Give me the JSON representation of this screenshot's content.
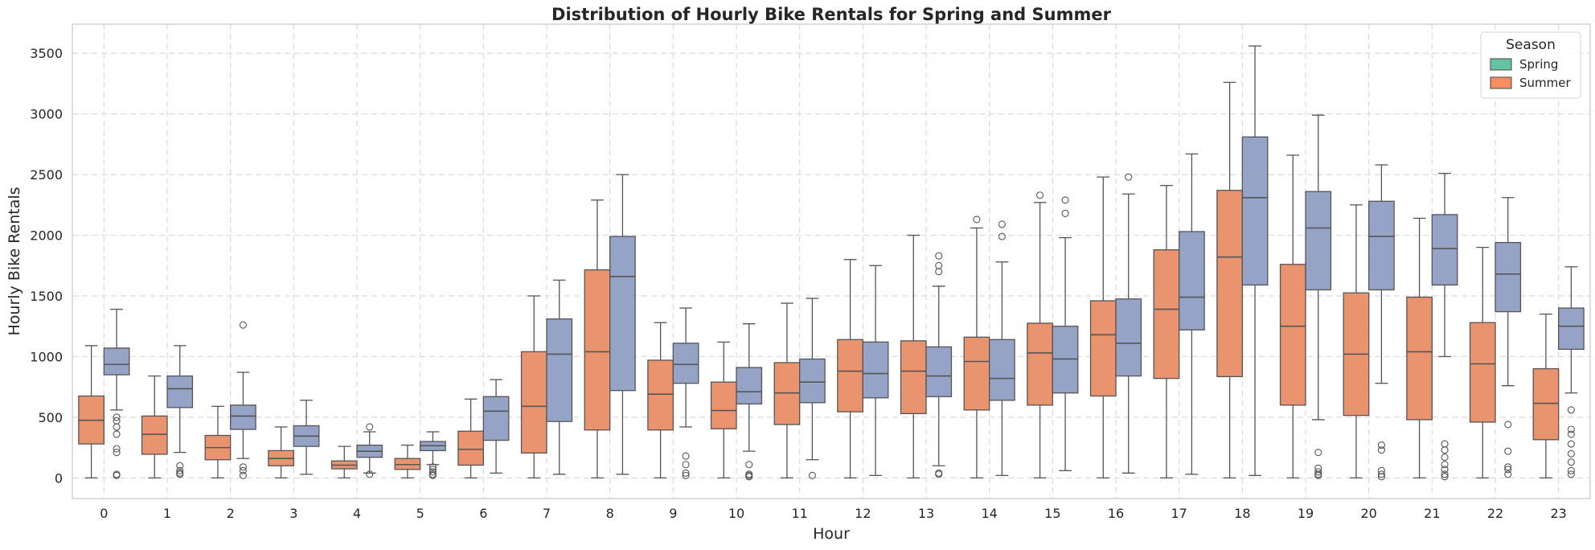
{
  "chart_data": {
    "type": "boxplot",
    "title": "Distribution of Hourly Bike Rentals for Spring and Summer",
    "xlabel": "Hour",
    "ylabel": "Hourly Bike Rentals",
    "categories": [
      "0",
      "1",
      "2",
      "3",
      "4",
      "5",
      "6",
      "7",
      "8",
      "9",
      "10",
      "11",
      "12",
      "13",
      "14",
      "15",
      "16",
      "17",
      "18",
      "19",
      "20",
      "21",
      "22",
      "23"
    ],
    "ylim": [
      -170,
      3740
    ],
    "yticks": [
      0,
      500,
      1000,
      1500,
      2000,
      2500,
      3000,
      3500
    ],
    "grid": true,
    "legend": {
      "title": "Season",
      "placement": "top-right",
      "entries": [
        {
          "label": "Spring",
          "color": "#66c2a5"
        },
        {
          "label": "Summer",
          "color": "#fc8d62"
        }
      ]
    },
    "series": [
      {
        "color": "#e9946f",
        "boxes": [
          {
            "q1": 280,
            "median": 475,
            "q3": 675,
            "whislo": 0,
            "whishi": 1090,
            "fliers": []
          },
          {
            "q1": 195,
            "median": 360,
            "q3": 510,
            "whislo": 0,
            "whishi": 840,
            "fliers": []
          },
          {
            "q1": 150,
            "median": 250,
            "q3": 350,
            "whislo": 0,
            "whishi": 590,
            "fliers": []
          },
          {
            "q1": 100,
            "median": 160,
            "q3": 225,
            "whislo": 0,
            "whishi": 420,
            "fliers": []
          },
          {
            "q1": 75,
            "median": 105,
            "q3": 140,
            "whislo": 0,
            "whishi": 260,
            "fliers": []
          },
          {
            "q1": 70,
            "median": 110,
            "q3": 160,
            "whislo": 0,
            "whishi": 270,
            "fliers": []
          },
          {
            "q1": 105,
            "median": 235,
            "q3": 385,
            "whislo": 0,
            "whishi": 650,
            "fliers": []
          },
          {
            "q1": 205,
            "median": 590,
            "q3": 1040,
            "whislo": 0,
            "whishi": 1500,
            "fliers": []
          },
          {
            "q1": 395,
            "median": 1040,
            "q3": 1715,
            "whislo": 0,
            "whishi": 2290,
            "fliers": []
          },
          {
            "q1": 395,
            "median": 690,
            "q3": 970,
            "whislo": 0,
            "whishi": 1280,
            "fliers": []
          },
          {
            "q1": 405,
            "median": 555,
            "q3": 790,
            "whislo": 0,
            "whishi": 1120,
            "fliers": []
          },
          {
            "q1": 440,
            "median": 700,
            "q3": 950,
            "whislo": 0,
            "whishi": 1440,
            "fliers": []
          },
          {
            "q1": 545,
            "median": 880,
            "q3": 1140,
            "whislo": 0,
            "whishi": 1800,
            "fliers": []
          },
          {
            "q1": 530,
            "median": 880,
            "q3": 1130,
            "whislo": 0,
            "whishi": 2000,
            "fliers": []
          },
          {
            "q1": 560,
            "median": 960,
            "q3": 1160,
            "whislo": 0,
            "whishi": 2060,
            "fliers": [
              2130
            ]
          },
          {
            "q1": 600,
            "median": 1030,
            "q3": 1275,
            "whislo": 0,
            "whishi": 2270,
            "fliers": [
              2330
            ]
          },
          {
            "q1": 675,
            "median": 1180,
            "q3": 1460,
            "whislo": 0,
            "whishi": 2480,
            "fliers": []
          },
          {
            "q1": 820,
            "median": 1390,
            "q3": 1880,
            "whislo": 0,
            "whishi": 2410,
            "fliers": []
          },
          {
            "q1": 835,
            "median": 1820,
            "q3": 2370,
            "whislo": 0,
            "whishi": 3260,
            "fliers": []
          },
          {
            "q1": 600,
            "median": 1250,
            "q3": 1760,
            "whislo": 0,
            "whishi": 2660,
            "fliers": []
          },
          {
            "q1": 515,
            "median": 1020,
            "q3": 1525,
            "whislo": 0,
            "whishi": 2250,
            "fliers": []
          },
          {
            "q1": 480,
            "median": 1040,
            "q3": 1490,
            "whislo": 0,
            "whishi": 2140,
            "fliers": []
          },
          {
            "q1": 460,
            "median": 940,
            "q3": 1280,
            "whislo": 0,
            "whishi": 1900,
            "fliers": []
          },
          {
            "q1": 315,
            "median": 615,
            "q3": 900,
            "whislo": 0,
            "whishi": 1350,
            "fliers": []
          }
        ]
      },
      {
        "color": "#95a3c6",
        "boxes": [
          {
            "q1": 850,
            "median": 935,
            "q3": 1070,
            "whislo": 560,
            "whishi": 1390,
            "fliers": [
              500,
              470,
              420,
              360,
              240,
              210,
              30,
              20
            ]
          },
          {
            "q1": 580,
            "median": 735,
            "q3": 840,
            "whislo": 210,
            "whishi": 1090,
            "fliers": [
              100,
              60,
              40,
              30
            ]
          },
          {
            "q1": 400,
            "median": 510,
            "q3": 600,
            "whislo": 160,
            "whishi": 870,
            "fliers": [
              1260,
              90,
              60,
              20
            ]
          },
          {
            "q1": 260,
            "median": 345,
            "q3": 430,
            "whislo": 30,
            "whishi": 640,
            "fliers": []
          },
          {
            "q1": 170,
            "median": 220,
            "q3": 270,
            "whislo": 40,
            "whishi": 380,
            "fliers": [
              420,
              30
            ]
          },
          {
            "q1": 225,
            "median": 265,
            "q3": 300,
            "whislo": 110,
            "whishi": 380,
            "fliers": [
              90,
              70,
              50,
              30,
              20
            ]
          },
          {
            "q1": 310,
            "median": 550,
            "q3": 670,
            "whislo": 40,
            "whishi": 810,
            "fliers": []
          },
          {
            "q1": 465,
            "median": 1020,
            "q3": 1310,
            "whislo": 30,
            "whishi": 1630,
            "fliers": []
          },
          {
            "q1": 720,
            "median": 1660,
            "q3": 1990,
            "whislo": 30,
            "whishi": 2500,
            "fliers": []
          },
          {
            "q1": 780,
            "median": 935,
            "q3": 1110,
            "whislo": 420,
            "whishi": 1400,
            "fliers": [
              180,
              110,
              40,
              20
            ]
          },
          {
            "q1": 610,
            "median": 710,
            "q3": 910,
            "whislo": 220,
            "whishi": 1270,
            "fliers": [
              110,
              30,
              20,
              10
            ]
          },
          {
            "q1": 620,
            "median": 790,
            "q3": 980,
            "whislo": 150,
            "whishi": 1480,
            "fliers": [
              20
            ]
          },
          {
            "q1": 660,
            "median": 860,
            "q3": 1120,
            "whislo": 20,
            "whishi": 1750,
            "fliers": []
          },
          {
            "q1": 670,
            "median": 840,
            "q3": 1080,
            "whislo": 100,
            "whishi": 1580,
            "fliers": [
              1830,
              1750,
              1700,
              40,
              30
            ]
          },
          {
            "q1": 640,
            "median": 820,
            "q3": 1140,
            "whislo": 20,
            "whishi": 1780,
            "fliers": [
              2090,
              1990
            ]
          },
          {
            "q1": 700,
            "median": 980,
            "q3": 1250,
            "whislo": 60,
            "whishi": 1980,
            "fliers": [
              2290,
              2180
            ]
          },
          {
            "q1": 840,
            "median": 1110,
            "q3": 1475,
            "whislo": 40,
            "whishi": 2340,
            "fliers": [
              2480
            ]
          },
          {
            "q1": 1220,
            "median": 1490,
            "q3": 2030,
            "whislo": 30,
            "whishi": 2670,
            "fliers": []
          },
          {
            "q1": 1590,
            "median": 2310,
            "q3": 2810,
            "whislo": 20,
            "whishi": 3560,
            "fliers": []
          },
          {
            "q1": 1550,
            "median": 2060,
            "q3": 2360,
            "whislo": 480,
            "whishi": 2990,
            "fliers": [
              210,
              80,
              50,
              30,
              20
            ]
          },
          {
            "q1": 1550,
            "median": 1990,
            "q3": 2280,
            "whislo": 780,
            "whishi": 2580,
            "fliers": [
              270,
              230,
              60,
              30,
              10
            ]
          },
          {
            "q1": 1590,
            "median": 1890,
            "q3": 2170,
            "whislo": 1000,
            "whishi": 2510,
            "fliers": [
              280,
              230,
              170,
              110,
              70,
              30,
              10
            ]
          },
          {
            "q1": 1370,
            "median": 1680,
            "q3": 1940,
            "whislo": 760,
            "whishi": 2310,
            "fliers": [
              440,
              220,
              90,
              70,
              30
            ]
          },
          {
            "q1": 1060,
            "median": 1250,
            "q3": 1400,
            "whislo": 700,
            "whishi": 1740,
            "fliers": [
              560,
              400,
              360,
              280,
              200,
              130,
              60,
              30
            ]
          }
        ]
      }
    ]
  }
}
